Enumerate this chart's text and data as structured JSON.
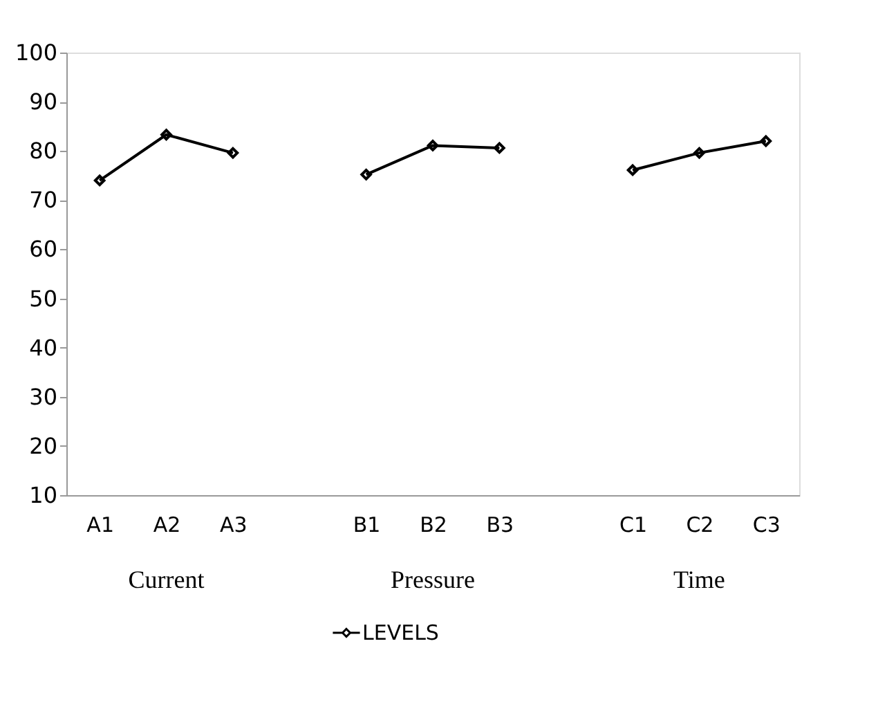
{
  "chart_data": {
    "type": "line",
    "categories": [
      "A1",
      "A2",
      "A3",
      null,
      "B1",
      "B2",
      "B3",
      null,
      "C1",
      "C2",
      "C3"
    ],
    "series": [
      {
        "name": "LEVELS",
        "color": "#000000",
        "values": [
          74.0,
          83.3,
          79.6,
          null,
          75.2,
          81.1,
          80.6,
          null,
          76.1,
          79.6,
          82.0
        ]
      }
    ],
    "annotations": [
      "Current",
      "Pressure",
      "Time"
    ],
    "ylim": [
      10,
      100
    ],
    "yticks": [
      10,
      20,
      30,
      40,
      50,
      60,
      70,
      80,
      90,
      100
    ],
    "grid": false,
    "legend": "bottom",
    "marker": "diamond",
    "line_style": "solid"
  }
}
